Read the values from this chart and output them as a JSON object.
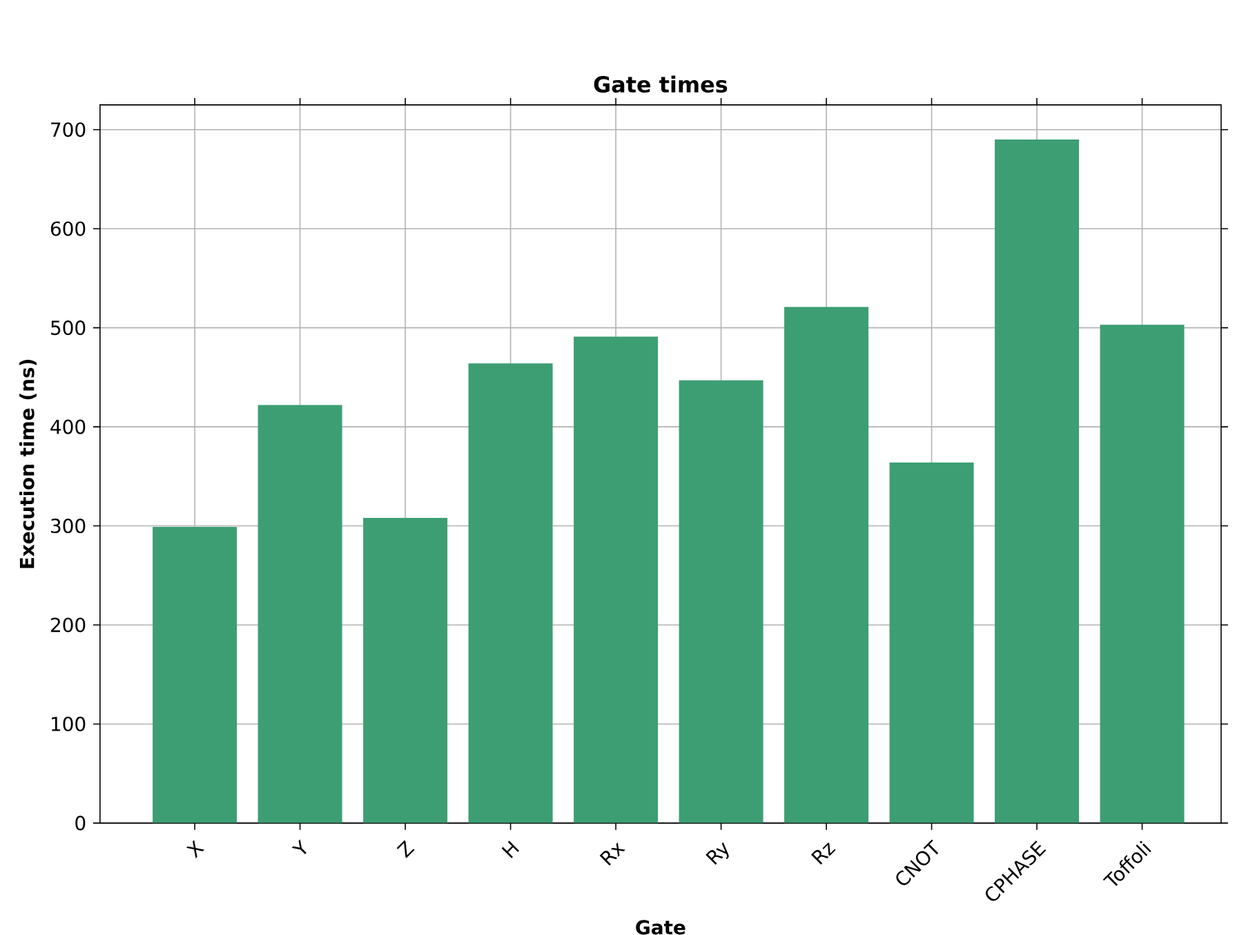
{
  "chart_data": {
    "type": "bar",
    "title": "Gate times",
    "xlabel": "Gate",
    "ylabel": "Execution time (ns)",
    "categories": [
      "X",
      "Y",
      "Z",
      "H",
      "Rx",
      "Ry",
      "Rz",
      "CNOT",
      "CPHASE",
      "Toffoli"
    ],
    "values": [
      299,
      422,
      308,
      464,
      491,
      447,
      521,
      364,
      690,
      503
    ],
    "color": "#3d9e74",
    "ylim": [
      0,
      725
    ],
    "yticks": [
      0,
      100,
      200,
      300,
      400,
      500,
      600,
      700
    ],
    "grid": true
  }
}
